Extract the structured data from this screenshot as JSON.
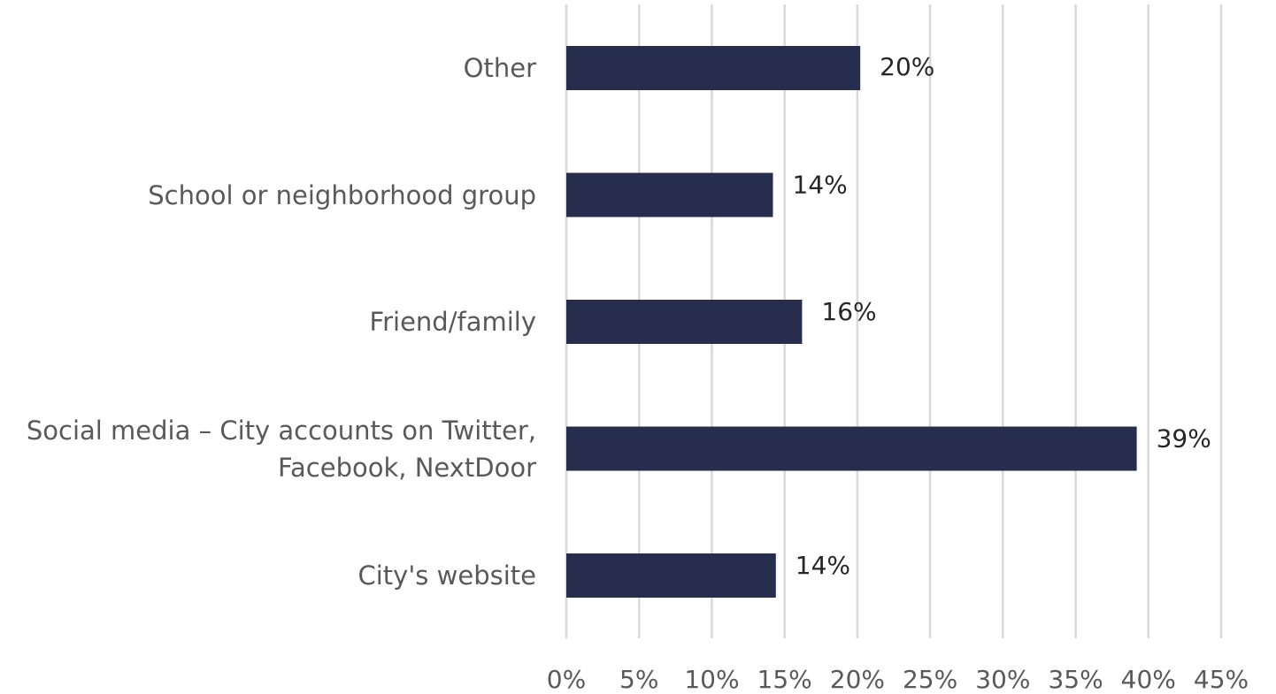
{
  "chart_data": {
    "type": "bar",
    "orientation": "horizontal",
    "categories": [
      "Other",
      "School or neighborhood group",
      "Friend/family",
      "Social media – City accounts on Twitter, Facebook, NextDoor",
      "City's website"
    ],
    "values": [
      20.2,
      14.2,
      16.2,
      39.2,
      14.4
    ],
    "value_labels": [
      "20%",
      "14%",
      "16%",
      "39%",
      "14%"
    ],
    "color": "#272d4d",
    "xlim": [
      0,
      45
    ],
    "xticks": [
      {
        "value": 0,
        "label": "0%"
      },
      {
        "value": 5,
        "label": "5%"
      },
      {
        "value": 10,
        "label": "10%"
      },
      {
        "value": 15,
        "label": "15%"
      },
      {
        "value": 20,
        "label": "20%"
      },
      {
        "value": 25,
        "label": "25%"
      },
      {
        "value": 30,
        "label": "30%"
      },
      {
        "value": 35,
        "label": "35%"
      },
      {
        "value": 40,
        "label": "40%"
      },
      {
        "value": 45,
        "label": "45%"
      }
    ],
    "grid": true
  }
}
